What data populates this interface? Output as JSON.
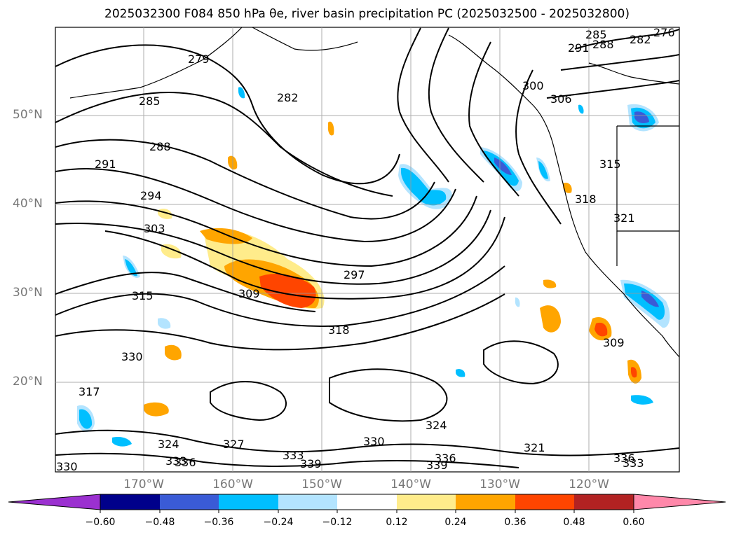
{
  "title": "2025032300 F084 850 hPa θe, river basin precipitation PC (2025032500 - 2025032800)",
  "lat_labels": [
    "50°N",
    "40°N",
    "30°N",
    "20°N"
  ],
  "lon_labels": [
    "170°W",
    "160°W",
    "150°W",
    "140°W",
    "130°W",
    "120°W"
  ],
  "colorbar": {
    "ticks": [
      "−0.60",
      "−0.48",
      "−0.36",
      "−0.24",
      "−0.12",
      "0.12",
      "0.24",
      "0.36",
      "0.48",
      "0.60"
    ],
    "colors": [
      "#9b30d0",
      "#00008b",
      "#3a5bd6",
      "#00bfff",
      "#b3e4ff",
      "#ffffff",
      "#ffec8b",
      "#ffa500",
      "#ff4500",
      "#b22222",
      "#ff88aa"
    ]
  },
  "contour_labels": [
    "279",
    "282",
    "285",
    "288",
    "291",
    "294",
    "303",
    "309",
    "297",
    "318",
    "315",
    "330",
    "317",
    "324",
    "327",
    "333",
    "336",
    "339",
    "330",
    "333",
    "336",
    "339",
    "324",
    "321",
    "309",
    "318",
    "321",
    "315",
    "300",
    "306",
    "291",
    "288",
    "285",
    "282",
    "276",
    "330",
    "333",
    "336"
  ],
  "legend_colors": {
    "land_outline": "#000000",
    "grid": "#999999"
  }
}
